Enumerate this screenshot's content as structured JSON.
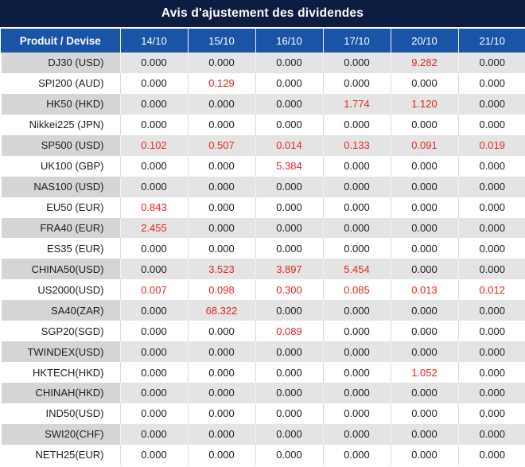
{
  "title": "Avis d'ajustement des dividendes",
  "colors": {
    "title_bg": "#0c1d41",
    "header_bg": "#1954a6",
    "red_value": "#e52521",
    "row_shade_product": "#d5d5d5",
    "row_shade_value": "#e4e4e4"
  },
  "table": {
    "product_header": "Produit / Devise",
    "columns": [
      "14/10",
      "15/10",
      "16/10",
      "17/10",
      "20/10",
      "21/10"
    ],
    "rows": [
      {
        "product": "DJ30 (USD)",
        "values": [
          "0.000",
          "0.000",
          "0.000",
          "0.000",
          "9.282",
          "0.000"
        ],
        "red": [
          false,
          false,
          false,
          false,
          true,
          false
        ]
      },
      {
        "product": "SPI200 (AUD)",
        "values": [
          "0.000",
          "0.129",
          "0.000",
          "0.000",
          "0.000",
          "0.000"
        ],
        "red": [
          false,
          true,
          false,
          false,
          false,
          false
        ]
      },
      {
        "product": "HK50 (HKD)",
        "values": [
          "0.000",
          "0.000",
          "0.000",
          "1.774",
          "1.120",
          "0.000"
        ],
        "red": [
          false,
          false,
          false,
          true,
          true,
          false
        ]
      },
      {
        "product": "Nikkei225 (JPN)",
        "values": [
          "0.000",
          "0.000",
          "0.000",
          "0.000",
          "0.000",
          "0.000"
        ],
        "red": [
          false,
          false,
          false,
          false,
          false,
          false
        ]
      },
      {
        "product": "SP500 (USD)",
        "values": [
          "0.102",
          "0.507",
          "0.014",
          "0.133",
          "0.091",
          "0.019"
        ],
        "red": [
          true,
          true,
          true,
          true,
          true,
          true
        ]
      },
      {
        "product": "UK100 (GBP)",
        "values": [
          "0.000",
          "0.000",
          "5.384",
          "0.000",
          "0.000",
          "0.000"
        ],
        "red": [
          false,
          false,
          true,
          false,
          false,
          false
        ]
      },
      {
        "product": "NAS100 (USD)",
        "values": [
          "0.000",
          "0.000",
          "0.000",
          "0.000",
          "0.000",
          "0.000"
        ],
        "red": [
          false,
          false,
          false,
          false,
          false,
          false
        ]
      },
      {
        "product": "EU50 (EUR)",
        "values": [
          "0.843",
          "0.000",
          "0.000",
          "0.000",
          "0.000",
          "0.000"
        ],
        "red": [
          true,
          false,
          false,
          false,
          false,
          false
        ]
      },
      {
        "product": "FRA40 (EUR)",
        "values": [
          "2.455",
          "0.000",
          "0.000",
          "0.000",
          "0.000",
          "0.000"
        ],
        "red": [
          true,
          false,
          false,
          false,
          false,
          false
        ]
      },
      {
        "product": "ES35 (EUR)",
        "values": [
          "0.000",
          "0.000",
          "0.000",
          "0.000",
          "0.000",
          "0.000"
        ],
        "red": [
          false,
          false,
          false,
          false,
          false,
          false
        ]
      },
      {
        "product": "CHINA50(USD)",
        "values": [
          "0.000",
          "3.523",
          "3.897",
          "5.454",
          "0.000",
          "0.000"
        ],
        "red": [
          false,
          true,
          true,
          true,
          false,
          false
        ]
      },
      {
        "product": "US2000(USD)",
        "values": [
          "0.007",
          "0.098",
          "0.300",
          "0.085",
          "0.013",
          "0.012"
        ],
        "red": [
          true,
          true,
          true,
          true,
          true,
          true
        ]
      },
      {
        "product": "SA40(ZAR)",
        "values": [
          "0.000",
          "68.322",
          "0.000",
          "0.000",
          "0.000",
          "0.000"
        ],
        "red": [
          false,
          true,
          false,
          false,
          false,
          false
        ]
      },
      {
        "product": "SGP20(SGD)",
        "values": [
          "0.000",
          "0.000",
          "0.089",
          "0.000",
          "0.000",
          "0.000"
        ],
        "red": [
          false,
          false,
          true,
          false,
          false,
          false
        ]
      },
      {
        "product": "TWINDEX(USD)",
        "values": [
          "0.000",
          "0.000",
          "0.000",
          "0.000",
          "0.000",
          "0.000"
        ],
        "red": [
          false,
          false,
          false,
          false,
          false,
          false
        ]
      },
      {
        "product": "HKTECH(HKD)",
        "values": [
          "0.000",
          "0.000",
          "0.000",
          "0.000",
          "1.052",
          "0.000"
        ],
        "red": [
          false,
          false,
          false,
          false,
          true,
          false
        ]
      },
      {
        "product": "CHINAH(HKD)",
        "values": [
          "0.000",
          "0.000",
          "0.000",
          "0.000",
          "0.000",
          "0.000"
        ],
        "red": [
          false,
          false,
          false,
          false,
          false,
          false
        ]
      },
      {
        "product": "IND50(USD)",
        "values": [
          "0.000",
          "0.000",
          "0.000",
          "0.000",
          "0.000",
          "0.000"
        ],
        "red": [
          false,
          false,
          false,
          false,
          false,
          false
        ]
      },
      {
        "product": "SWI20(CHF)",
        "values": [
          "0.000",
          "0.000",
          "0.000",
          "0.000",
          "0.000",
          "0.000"
        ],
        "red": [
          false,
          false,
          false,
          false,
          false,
          false
        ]
      },
      {
        "product": "NETH25(EUR)",
        "values": [
          "0.000",
          "0.000",
          "0.000",
          "0.000",
          "0.000",
          "0.000"
        ],
        "red": [
          false,
          false,
          false,
          false,
          false,
          false
        ]
      }
    ]
  }
}
